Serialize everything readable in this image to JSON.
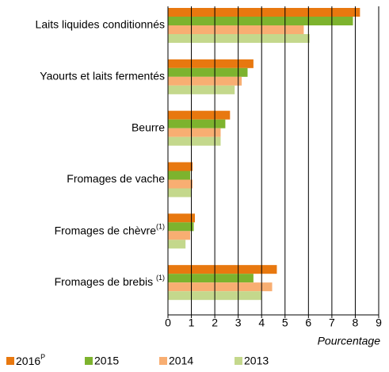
{
  "chart_data": {
    "type": "hbar",
    "xlabel": "Pourcentage",
    "categories": [
      "Laits liquides conditionnés",
      "Yaourts et laits fermentés",
      "Beurre",
      "Fromages de vache",
      "Fromages de chèvre(1)",
      "Fromages de brebis (1)"
    ],
    "series": [
      {
        "name": "2016P",
        "color": "#e8780f",
        "values": [
          8.2,
          3.65,
          2.65,
          1.05,
          1.15,
          4.65
        ]
      },
      {
        "name": "2015",
        "color": "#7db32e",
        "values": [
          7.9,
          3.4,
          2.45,
          0.95,
          1.1,
          3.65
        ]
      },
      {
        "name": "2014",
        "color": "#f8ae72",
        "values": [
          5.8,
          3.15,
          2.25,
          1.05,
          0.95,
          4.45
        ]
      },
      {
        "name": "2013",
        "color": "#c4d88c",
        "values": [
          6.05,
          2.85,
          2.25,
          1.0,
          0.75,
          4.0
        ]
      }
    ],
    "xlim": [
      0,
      9
    ],
    "xticks": [
      0,
      1,
      2,
      3,
      4,
      5,
      6,
      7,
      8,
      9
    ],
    "grid": true
  }
}
